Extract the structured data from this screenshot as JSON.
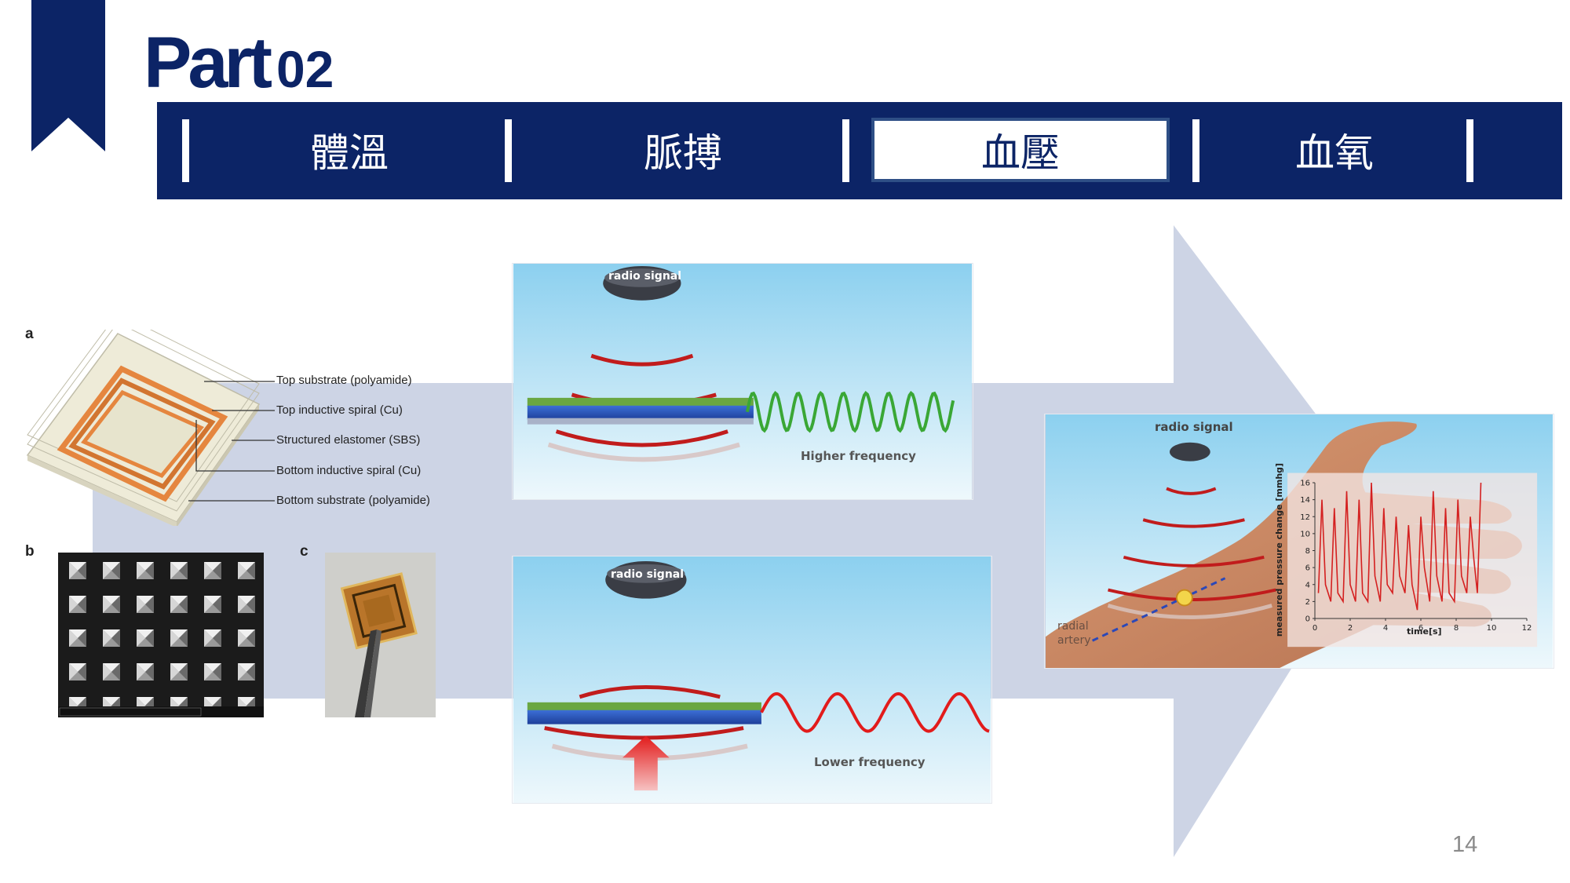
{
  "header": {
    "title_word": "Part",
    "title_number": "02"
  },
  "tabs": [
    {
      "label": "體溫",
      "active": false
    },
    {
      "label": "脈搏",
      "active": false
    },
    {
      "label": "血壓",
      "active": true
    },
    {
      "label": "血氧",
      "active": false
    }
  ],
  "figure_a": {
    "panel_label": "a",
    "layers": [
      "Top substrate (polyamide)",
      "Top inductive spiral (Cu)",
      "Structured elastomer (SBS)",
      "Bottom inductive spiral (Cu)",
      "Bottom substrate (polyamide)"
    ]
  },
  "figure_b": {
    "panel_label": "b"
  },
  "figure_c": {
    "panel_label": "c"
  },
  "sensor_top": {
    "radio_label": "radio signal",
    "freq_label": "Higher frequency"
  },
  "sensor_bottom": {
    "radio_label": "radio signal",
    "freq_label": "Lower frequency"
  },
  "wrist": {
    "radio_label": "radio signal",
    "artery_line1": "radial",
    "artery_line2": "artery"
  },
  "chart_data": {
    "type": "line",
    "ylabel": "measured pressure change [mmhg]",
    "xlabel": "time[s]",
    "xlim": [
      0,
      12
    ],
    "ylim": [
      0,
      16
    ],
    "x_ticks": [
      "0",
      "2",
      "4",
      "6",
      "8",
      "10",
      "12"
    ],
    "y_ticks": [
      "0",
      "2",
      "4",
      "6",
      "8",
      "10",
      "12",
      "14",
      "16"
    ],
    "series": [
      {
        "color": "#d42020",
        "x": [
          0.2,
          0.4,
          0.6,
          0.9,
          1.1,
          1.3,
          1.6,
          1.8,
          2.0,
          2.3,
          2.5,
          2.7,
          3.0,
          3.2,
          3.4,
          3.7,
          3.9,
          4.1,
          4.4,
          4.6,
          4.8,
          5.1,
          5.3,
          5.5,
          5.8,
          6.0,
          6.2,
          6.5,
          6.7,
          6.9,
          7.2,
          7.4,
          7.6,
          7.9,
          8.1,
          8.3,
          8.6,
          8.8,
          9.0,
          9.2,
          9.4
        ],
        "y": [
          3,
          14,
          4,
          2,
          13,
          3,
          2,
          15,
          4,
          2,
          14,
          3,
          2,
          16,
          5,
          2,
          13,
          4,
          3,
          12,
          5,
          3,
          11,
          4,
          1,
          12,
          6,
          2,
          15,
          5,
          2,
          13,
          3,
          2,
          14,
          5,
          3,
          12,
          7,
          3,
          16
        ]
      }
    ],
    "grid": false,
    "legend": "none"
  },
  "page_number": "14",
  "colors": {
    "navy": "#0c2466",
    "arrow": "#cdd4e5",
    "sky_top": "#8cd0ef",
    "sky_bottom": "#e9f6fc",
    "green_wave": "#3aa735",
    "red_wave": "#e21b1b",
    "copper": "#e5863f"
  }
}
